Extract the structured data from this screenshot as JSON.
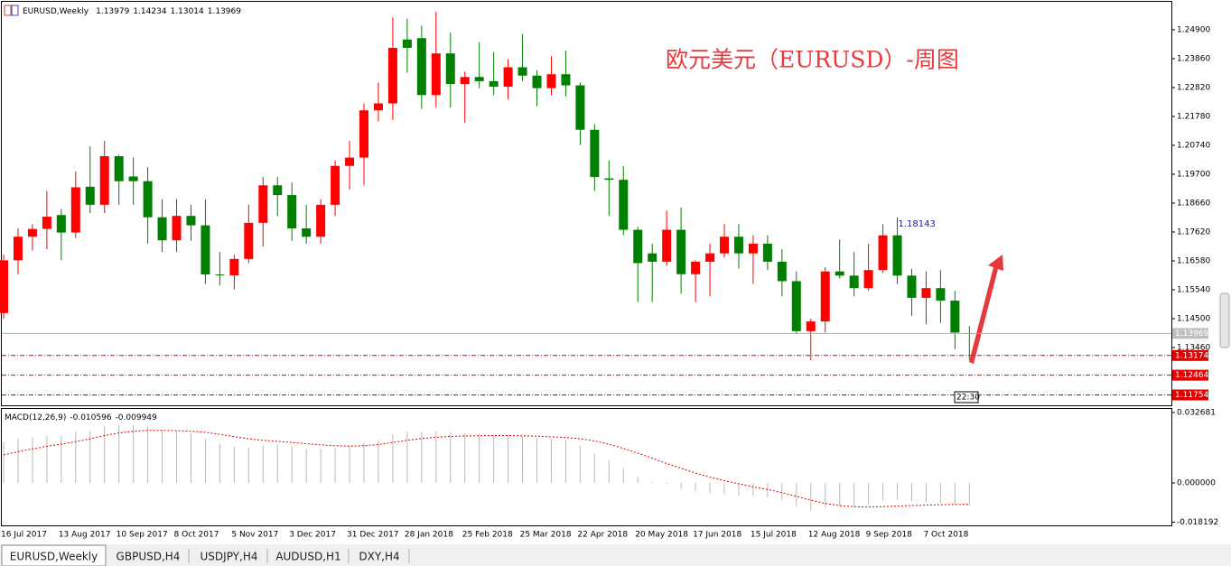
{
  "chart_data": [
    {
      "type": "candlestick",
      "title": "EURUSD,Weekly",
      "annotation": "欧元美元（EURUSD）-周图",
      "time_label": "22:30",
      "up_color": "#ff0000",
      "down_color": "#008000",
      "categories": [
        "16 Jul 2017",
        null,
        null,
        null,
        "13 Aug 2017",
        null,
        null,
        null,
        "10 Sep 2017",
        null,
        null,
        null,
        "8 Oct 2017",
        null,
        null,
        null,
        "5 Nov 2017",
        null,
        null,
        null,
        "3 Dec 2017",
        null,
        null,
        null,
        "31 Dec 2017",
        null,
        null,
        null,
        "28 Jan 2018",
        null,
        null,
        null,
        "25 Feb 2018",
        null,
        null,
        null,
        "25 Mar 2018",
        null,
        null,
        null,
        "22 Apr 2018",
        null,
        null,
        null,
        "20 May 2018",
        null,
        null,
        null,
        "17 Jun 2018",
        null,
        null,
        null,
        "15 Jul 2018",
        null,
        null,
        null,
        "12 Aug 2018",
        null,
        null,
        null,
        "9 Sep 2018",
        null,
        null,
        null,
        "7 Oct 2018",
        null,
        null,
        null
      ],
      "open": [
        1.147,
        1.166,
        1.1745,
        1.1773,
        1.1823,
        1.176,
        1.1925,
        1.186,
        1.2035,
        1.1962,
        1.1945,
        1.1815,
        1.1732,
        1.182,
        1.1786,
        1.1609,
        1.1606,
        1.1665,
        1.1795,
        1.193,
        1.1895,
        1.1775,
        1.1745,
        1.186,
        1.2,
        1.203,
        1.22,
        1.2225,
        1.2455,
        1.246,
        1.2255,
        1.2405,
        1.2295,
        1.232,
        1.2305,
        1.2285,
        1.2355,
        1.2325,
        1.228,
        1.233,
        1.229,
        1.213,
        1.1955,
        1.195,
        1.177,
        1.1685,
        1.1655,
        1.177,
        1.161,
        1.1655,
        1.1685,
        1.1745,
        1.1685,
        1.172,
        1.1655,
        1.1585,
        1.1405,
        1.144,
        1.162,
        1.1605,
        1.156,
        1.1625,
        1.175,
        1.1605,
        1.1525,
        1.156,
        1.1515,
        1.13979
      ],
      "high": [
        1.168,
        1.1775,
        1.179,
        1.191,
        1.1845,
        1.198,
        1.207,
        1.209,
        1.204,
        1.203,
        1.1995,
        1.188,
        1.188,
        1.186,
        1.188,
        1.169,
        1.168,
        1.186,
        1.196,
        1.196,
        1.194,
        1.186,
        1.188,
        1.202,
        1.209,
        1.2225,
        1.23,
        1.2535,
        1.253,
        1.2505,
        1.2555,
        1.248,
        1.234,
        1.2445,
        1.241,
        1.2385,
        1.2475,
        1.2345,
        1.2395,
        1.2415,
        1.23,
        1.215,
        1.202,
        1.2,
        1.178,
        1.172,
        1.184,
        1.185,
        1.166,
        1.172,
        1.179,
        1.179,
        1.175,
        1.175,
        1.17,
        1.162,
        1.145,
        1.1635,
        1.1735,
        1.169,
        1.172,
        1.179,
        1.18143,
        1.163,
        1.162,
        1.1625,
        1.155,
        1.14234
      ],
      "low": [
        1.145,
        1.161,
        1.1695,
        1.17,
        1.166,
        1.174,
        1.183,
        1.183,
        1.186,
        1.186,
        1.172,
        1.169,
        1.169,
        1.173,
        1.1575,
        1.157,
        1.1555,
        1.165,
        1.171,
        1.182,
        1.173,
        1.172,
        1.172,
        1.182,
        1.1915,
        1.193,
        1.216,
        1.2165,
        1.2335,
        1.2205,
        1.221,
        1.221,
        1.2155,
        1.228,
        1.2255,
        1.224,
        1.2305,
        1.2215,
        1.2255,
        1.225,
        1.2075,
        1.191,
        1.182,
        1.175,
        1.151,
        1.151,
        1.164,
        1.154,
        1.151,
        1.153,
        1.167,
        1.163,
        1.1575,
        1.1625,
        1.153,
        1.1395,
        1.13,
        1.14,
        1.1595,
        1.153,
        1.155,
        1.1615,
        1.1575,
        1.146,
        1.143,
        1.1435,
        1.134,
        1.13014
      ],
      "close": [
        1.166,
        1.1745,
        1.1773,
        1.1817,
        1.176,
        1.1923,
        1.186,
        1.2035,
        1.1945,
        1.1945,
        1.1815,
        1.1732,
        1.182,
        1.1786,
        1.1609,
        1.1606,
        1.1665,
        1.1795,
        1.193,
        1.1895,
        1.1775,
        1.1745,
        1.186,
        1.2,
        1.203,
        1.22,
        1.2225,
        1.2425,
        1.2425,
        1.2255,
        1.2405,
        1.2295,
        1.232,
        1.2305,
        1.2285,
        1.2355,
        1.2325,
        1.228,
        1.233,
        1.229,
        1.213,
        1.196,
        1.195,
        1.177,
        1.165,
        1.1655,
        1.177,
        1.161,
        1.1655,
        1.1685,
        1.1745,
        1.1685,
        1.172,
        1.1655,
        1.1585,
        1.1405,
        1.144,
        1.162,
        1.1605,
        1.156,
        1.1625,
        1.175,
        1.1605,
        1.1525,
        1.156,
        1.1515,
        1.14,
        1.13969
      ],
      "levels": [
        1.13174,
        1.12464,
        1.11754
      ],
      "level_color": "#e00000",
      "ylim": [
        1.1138,
        1.2594
      ],
      "yticks": [
        {
          "value": 1.249,
          "label": "1.24900"
        },
        {
          "value": 1.2386,
          "label": "1.23860"
        },
        {
          "value": 1.2282,
          "label": "1.22820"
        },
        {
          "value": 1.2178,
          "label": "1.21780"
        },
        {
          "value": 1.2074,
          "label": "1.20740"
        },
        {
          "value": 1.197,
          "label": "1.19700"
        },
        {
          "value": 1.1866,
          "label": "1.18660"
        },
        {
          "value": 1.1762,
          "label": "1.17620"
        },
        {
          "value": 1.1658,
          "label": "1.16580"
        },
        {
          "value": 1.1554,
          "label": "1.15540"
        },
        {
          "value": 1.145,
          "label": "1.14500"
        },
        {
          "value": 1.1346,
          "label": "1.13460"
        }
      ]
    },
    {
      "type": "macd",
      "title": "MACD(12,26,9)",
      "histogram": [
        0.019,
        0.0205,
        0.0212,
        0.022,
        0.022,
        0.0238,
        0.0242,
        0.0262,
        0.0268,
        0.027,
        0.0262,
        0.0245,
        0.024,
        0.0232,
        0.0205,
        0.0182,
        0.0168,
        0.0165,
        0.0175,
        0.0178,
        0.017,
        0.0158,
        0.0158,
        0.0165,
        0.017,
        0.0188,
        0.02,
        0.0225,
        0.024,
        0.0235,
        0.024,
        0.0235,
        0.023,
        0.0228,
        0.0222,
        0.0222,
        0.0218,
        0.021,
        0.0205,
        0.0198,
        0.0172,
        0.0135,
        0.0105,
        0.0068,
        0.003,
        0.0005,
        -0.0005,
        -0.0025,
        -0.004,
        -0.005,
        -0.0052,
        -0.0058,
        -0.006,
        -0.0066,
        -0.008,
        -0.011,
        -0.013,
        -0.0115,
        -0.0108,
        -0.0108,
        -0.01,
        -0.008,
        -0.0078,
        -0.0085,
        -0.0088,
        -0.0092,
        -0.01,
        -0.010596
      ],
      "signal": [
        0.013,
        0.0145,
        0.0158,
        0.017,
        0.018,
        0.0192,
        0.0205,
        0.022,
        0.0232,
        0.024,
        0.0244,
        0.0244,
        0.0243,
        0.024,
        0.0235,
        0.0226,
        0.0215,
        0.0205,
        0.0198,
        0.0193,
        0.0188,
        0.0182,
        0.0177,
        0.0173,
        0.0171,
        0.0173,
        0.0178,
        0.0188,
        0.0198,
        0.0206,
        0.0212,
        0.0216,
        0.0218,
        0.0219,
        0.022,
        0.022,
        0.0219,
        0.0217,
        0.0214,
        0.0211,
        0.0205,
        0.0195,
        0.018,
        0.016,
        0.0138,
        0.0115,
        0.009,
        0.0068,
        0.0046,
        0.0027,
        0.001,
        -0.0004,
        -0.0018,
        -0.003,
        -0.0045,
        -0.0062,
        -0.008,
        -0.0095,
        -0.0105,
        -0.011,
        -0.0112,
        -0.011,
        -0.0107,
        -0.0105,
        -0.0103,
        -0.0101,
        -0.01,
        -0.009949
      ],
      "histogram_color": "#b8b8b8",
      "signal_color": "#e00000",
      "ylim": [
        -0.01969,
        0.03478
      ],
      "yticks": [
        0.032681,
        {
          "value": 0,
          "label": "0.000000"
        },
        -0.018192
      ]
    }
  ],
  "tabs": [
    "EURUSD,Weekly",
    "GBPUSD,H4",
    "USDJPY,H4",
    "AUDUSD,H1",
    "DXY,H4"
  ]
}
